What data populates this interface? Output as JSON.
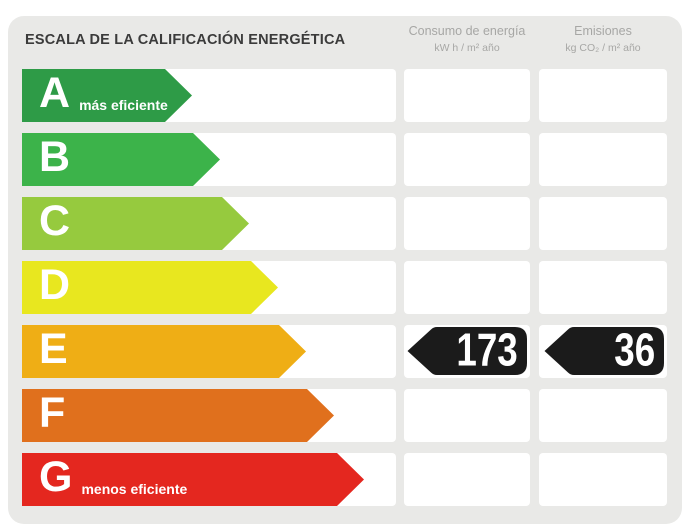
{
  "header": {
    "title": "ESCALA DE LA CALIFICACIÓN ENERGÉTICA",
    "consumption": {
      "label": "Consumo de energía",
      "unit": "kW h / m² año"
    },
    "emissions": {
      "label": "Emisiones",
      "unit": "kg CO₂ / m² año"
    }
  },
  "scale": {
    "rows": [
      {
        "letter": "A",
        "note": "más eficiente",
        "color": "#2e9b47",
        "arrow_width": 170
      },
      {
        "letter": "B",
        "color": "#3cb34a",
        "arrow_width": 198
      },
      {
        "letter": "C",
        "color": "#96ca3e",
        "arrow_width": 227
      },
      {
        "letter": "D",
        "color": "#e8e71f",
        "arrow_width": 256
      },
      {
        "letter": "E",
        "color": "#efae15",
        "arrow_width": 284
      },
      {
        "letter": "F",
        "color": "#e0701d",
        "arrow_width": 312
      },
      {
        "letter": "G",
        "note": "menos eficiente",
        "color": "#e4271f",
        "arrow_width": 342
      }
    ]
  },
  "rating": {
    "letter": "E",
    "consumption_value": "173",
    "emissions_value": "36",
    "marker_color": "#1b1b1b"
  },
  "chart_data": {
    "type": "bar",
    "title": "ESCALA DE LA CALIFICACIÓN ENERGÉTICA",
    "categories": [
      "A",
      "B",
      "C",
      "D",
      "E",
      "F",
      "G"
    ],
    "category_notes": {
      "A": "más eficiente",
      "G": "menos eficiente"
    },
    "category_colors": [
      "#2e9b47",
      "#3cb34a",
      "#96ca3e",
      "#e8e71f",
      "#efae15",
      "#e0701d",
      "#e4271f"
    ],
    "assigned_rating": "E",
    "series": [
      {
        "name": "Consumo de energía",
        "unit": "kW h / m² año",
        "rating": "E",
        "value": 173
      },
      {
        "name": "Emisiones",
        "unit": "kg CO₂ / m² año",
        "rating": "E",
        "value": 36
      }
    ],
    "layout": {
      "orientation": "horizontal",
      "legend": false,
      "grid": false
    }
  }
}
